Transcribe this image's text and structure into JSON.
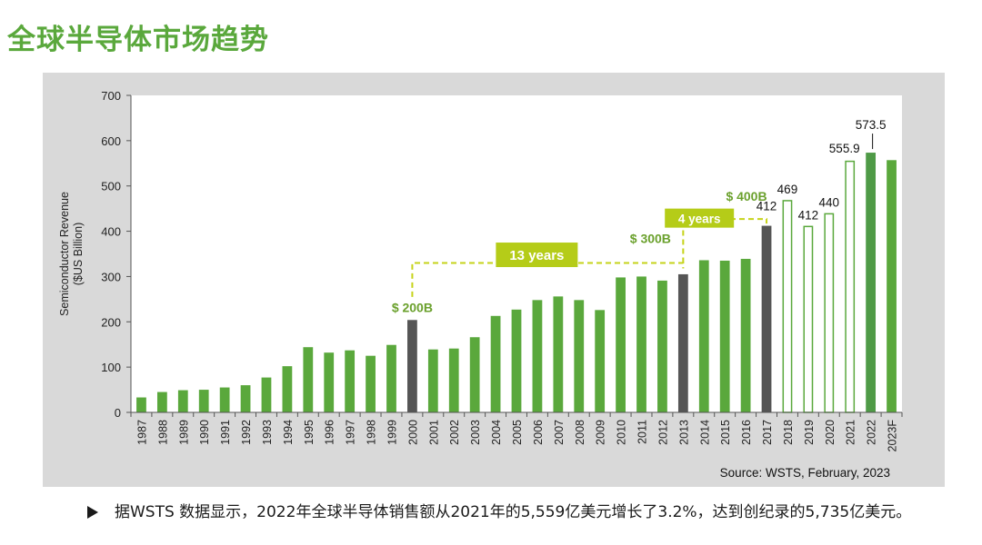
{
  "page": {
    "title": "全球半导体市场趋势"
  },
  "chart_data": {
    "type": "bar",
    "ylabel": "Semiconductor Revenue\n($US Billion)",
    "ylim": [
      0,
      700
    ],
    "yticks": [
      0,
      100,
      200,
      300,
      400,
      500,
      600,
      700
    ],
    "categories": [
      "1987",
      "1988",
      "1989",
      "1990",
      "1991",
      "1992",
      "1993",
      "1994",
      "1995",
      "1996",
      "1997",
      "1998",
      "1999",
      "2000",
      "2001",
      "2002",
      "2003",
      "2004",
      "2005",
      "2006",
      "2007",
      "2008",
      "2009",
      "2010",
      "2011",
      "2012",
      "2013",
      "2014",
      "2015",
      "2016",
      "2017",
      "2018",
      "2019",
      "2020",
      "2021",
      "2022",
      "2023F"
    ],
    "values": [
      33,
      45,
      49,
      50,
      55,
      60,
      77,
      102,
      144,
      132,
      137,
      125,
      149,
      204,
      139,
      141,
      166,
      213,
      227,
      248,
      256,
      248,
      226,
      298,
      300,
      291,
      305,
      336,
      335,
      339,
      412,
      469,
      412,
      440,
      555.9,
      573.5,
      557
    ],
    "bar_styles": [
      "solid",
      "solid",
      "solid",
      "solid",
      "solid",
      "solid",
      "solid",
      "solid",
      "solid",
      "solid",
      "solid",
      "solid",
      "solid",
      "dark",
      "solid",
      "solid",
      "solid",
      "solid",
      "solid",
      "solid",
      "solid",
      "solid",
      "solid",
      "solid",
      "solid",
      "solid",
      "dark",
      "solid",
      "solid",
      "solid",
      "dark",
      "outline",
      "outline",
      "outline",
      "outline",
      "darkgreen",
      "solid"
    ],
    "data_labels": [
      {
        "category": "2017",
        "text": "412"
      },
      {
        "category": "2018",
        "text": "469"
      },
      {
        "category": "2019",
        "text": "412"
      },
      {
        "category": "2020",
        "text": "440"
      },
      {
        "category": "2021",
        "text": "555.9"
      },
      {
        "category": "2022",
        "text": "573.5"
      }
    ],
    "milestones": [
      {
        "category": "2000",
        "text": "$ 200B"
      },
      {
        "category": "2013",
        "text": "$ 300B"
      },
      {
        "category": "2017",
        "text": "$ 400B"
      }
    ],
    "span_labels": [
      {
        "from": "2000",
        "to": "2013",
        "text": "13 years"
      },
      {
        "from": "2013",
        "to": "2017",
        "text": "4 years"
      }
    ],
    "source": "Source: WSTS, February, 2023",
    "grid": false,
    "colors": {
      "bar": "#5aa83c",
      "bar_dark": "#555555",
      "bar_2022": "#4f9a47",
      "bar_outline": "#5aa83c",
      "milestone_text": "#6aa02c",
      "callout_bg": "#b5cc18",
      "dashed": "#c6d31a",
      "panel_bg": "#d9d9d9",
      "plot_bg": "#ffffff"
    }
  },
  "footer": {
    "bullet_text": "据WSTS 数据显示，2022年全球半导体销售额从2021年的5,559亿美元增长了3.2%，达到创纪录的5,735亿美元。"
  }
}
